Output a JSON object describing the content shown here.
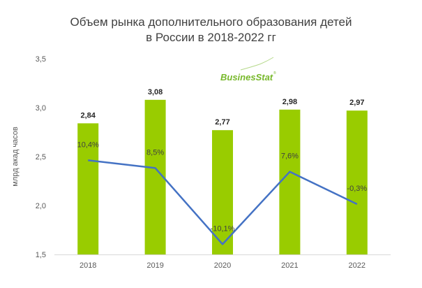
{
  "chart_data": {
    "type": "bar+line",
    "title_line1": "Объем рынка дополнительного образования детей",
    "title_line2": "в России в 2018-2022 гг",
    "ylabel": "млрд акад часов",
    "ylim": [
      1.5,
      3.5
    ],
    "yticks": [
      "1,5",
      "2,0",
      "2,5",
      "3,0",
      "3,5"
    ],
    "yticks_values": [
      1.5,
      2.0,
      2.5,
      3.0,
      3.5
    ],
    "categories": [
      "2018",
      "2019",
      "2020",
      "2021",
      "2022"
    ],
    "bars": {
      "values": [
        2.84,
        3.08,
        2.77,
        2.98,
        2.97
      ],
      "labels": [
        "2,84",
        "3,08",
        "2,77",
        "2,98",
        "2,97"
      ],
      "color": "#99cc00"
    },
    "line": {
      "values": [
        10.4,
        8.5,
        -10.1,
        7.6,
        -0.3
      ],
      "labels": [
        "10,4%",
        "8,5%",
        "-10,1%",
        "7,6%",
        "-0,3%"
      ],
      "color": "#4472c4",
      "axis": "secondary-hidden"
    },
    "grid": false,
    "legend": "none"
  },
  "logo": {
    "text": "BusinesStat",
    "color": "#77b82a"
  }
}
